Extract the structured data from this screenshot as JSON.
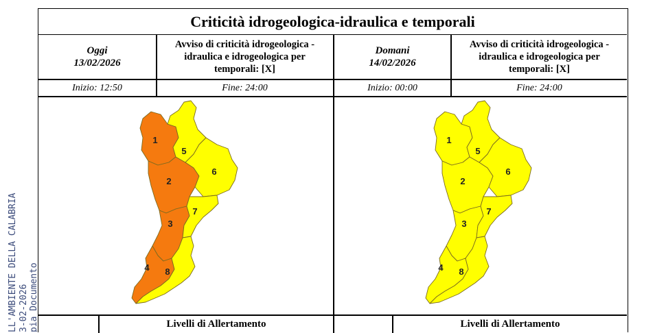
{
  "title": "Criticità idrogeologica-idraulica e temporali",
  "stamp_lines": [
    "LL'AMBIENTE DELLA CALABRIA",
    "3-02-2026",
    "pia Documento"
  ],
  "today": {
    "day_label": "Oggi",
    "date": "13/02/2026",
    "notice": [
      "Avviso di criticità idrogeologica -",
      "idraulica e idrogeologica per",
      "temporali: [X]"
    ],
    "start": "Inizio: 12:50",
    "end": "Fine: 24:00",
    "livelli": "Livelli di Allertamento",
    "zones": [
      {
        "label": "1",
        "color": "#f57a0f"
      },
      {
        "label": "2",
        "color": "#f57a0f"
      },
      {
        "label": "3",
        "color": "#f57a0f"
      },
      {
        "label": "4",
        "color": "#f57a0f"
      },
      {
        "label": "5",
        "color": "#ffff00"
      },
      {
        "label": "6",
        "color": "#ffff00"
      },
      {
        "label": "7",
        "color": "#ffff00"
      },
      {
        "label": "8",
        "color": "#ffff00"
      }
    ]
  },
  "tomorrow": {
    "day_label": "Domani",
    "date": "14/02/2026",
    "notice": [
      "Avviso di criticità idrogeologica -",
      "idraulica e idrogeologica per",
      "temporali: [X]"
    ],
    "start": "Inizio: 00:00",
    "end": "Fine: 24:00",
    "livelli": "Livelli di Allertamento",
    "zones": [
      {
        "label": "1",
        "color": "#ffff00"
      },
      {
        "label": "2",
        "color": "#ffff00"
      },
      {
        "label": "3",
        "color": "#ffff00"
      },
      {
        "label": "4",
        "color": "#ffff00"
      },
      {
        "label": "5",
        "color": "#ffff00"
      },
      {
        "label": "6",
        "color": "#ffff00"
      },
      {
        "label": "7",
        "color": "#ffff00"
      },
      {
        "label": "8",
        "color": "#ffff00"
      }
    ]
  }
}
